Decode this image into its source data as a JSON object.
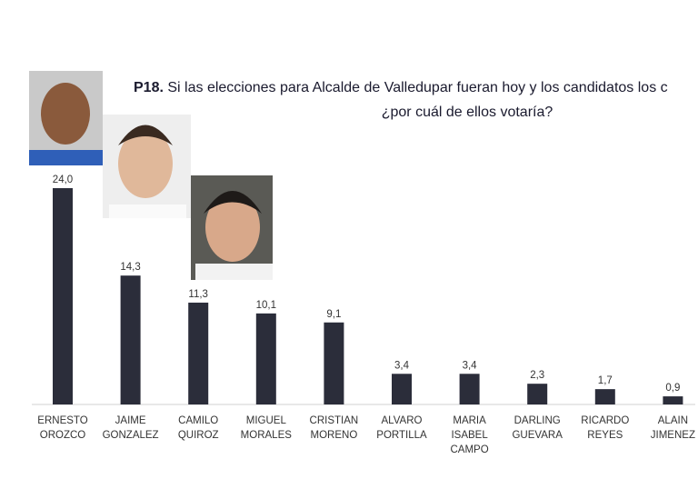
{
  "title_prefix": "P18.",
  "chart_data": {
    "type": "bar",
    "title": "Si las elecciones para Alcalde de Valledupar fueran hoy y los candidatos los c",
    "subtitle": "¿por cuál de ellos votaría?",
    "categories": [
      "ERNESTO OROZCO",
      "JAIME GONZALEZ",
      "CAMILO QUIROZ",
      "MIGUEL MORALES",
      "CRISTIAN MORENO",
      "ALVARO PORTILLA",
      "MARIA ISABEL CAMPO",
      "DARLING GUEVARA",
      "RICARDO REYES",
      "ALAIN JIMENEZ"
    ],
    "values": [
      24.0,
      14.3,
      11.3,
      10.1,
      9.1,
      3.4,
      3.4,
      2.3,
      1.7,
      0.9
    ],
    "value_labels": [
      "24,0",
      "14,3",
      "11,3",
      "10,1",
      "9,1",
      "3,4",
      "3,4",
      "2,3",
      "1,7",
      "0,9"
    ],
    "color": "#2b2d3a"
  }
}
